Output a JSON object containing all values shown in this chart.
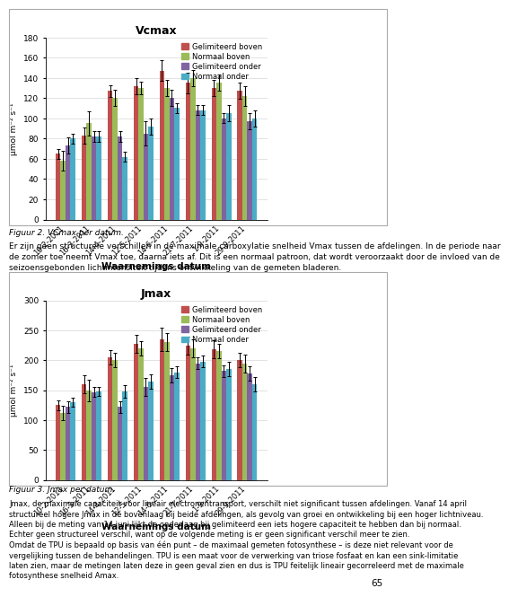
{
  "vcmax": {
    "title": "Vcmax",
    "xlabel": "Waarnemings datum",
    "ylabel": "μmol m⁻² s⁻¹",
    "ylim": [
      0,
      180
    ],
    "yticks": [
      0,
      20,
      40,
      60,
      80,
      100,
      120,
      140,
      160,
      180
    ],
    "categories": [
      "10-2-2011",
      "16-3-2011",
      "14-4-2011",
      "12-5-2011",
      "14-6-2011",
      "21-7-2011",
      "1-9-2011",
      "29-9-2011"
    ],
    "series": {
      "Gelimiteerd boven": [
        65,
        83,
        127,
        132,
        147,
        135,
        130,
        127
      ],
      "Normaal boven": [
        58,
        95,
        120,
        130,
        130,
        140,
        135,
        122
      ],
      "Gelimiteerd onder": [
        73,
        82,
        82,
        85,
        120,
        108,
        100,
        97
      ],
      "Normaal onder": [
        80,
        82,
        62,
        92,
        110,
        108,
        105,
        100
      ]
    },
    "errors": {
      "Gelimiteerd boven": [
        5,
        8,
        6,
        8,
        10,
        10,
        8,
        8
      ],
      "Normaal boven": [
        10,
        12,
        8,
        6,
        8,
        8,
        8,
        10
      ],
      "Gelimiteerd onder": [
        8,
        5,
        5,
        12,
        8,
        5,
        5,
        8
      ],
      "Normaal onder": [
        5,
        5,
        5,
        8,
        5,
        5,
        8,
        8
      ]
    }
  },
  "jmax": {
    "title": "Jmax",
    "xlabel": "Waarnemings datum",
    "ylabel": "μmol m⁻² s⁻¹",
    "ylim": [
      0,
      300
    ],
    "yticks": [
      0,
      50,
      100,
      150,
      200,
      250,
      300
    ],
    "categories": [
      "10-2-2011",
      "16-3-2011",
      "14-4-2011",
      "12-5-2011",
      "14-6-2011",
      "21-7-2011",
      "1-9-2011",
      "29-9-2011"
    ],
    "series": {
      "Gelimiteerd boven": [
        125,
        160,
        205,
        228,
        235,
        225,
        218,
        200
      ],
      "Normaal boven": [
        112,
        150,
        200,
        220,
        230,
        220,
        215,
        195
      ],
      "Gelimiteerd onder": [
        122,
        147,
        122,
        155,
        175,
        195,
        182,
        178
      ],
      "Normaal onder": [
        130,
        148,
        148,
        165,
        180,
        198,
        185,
        160
      ]
    },
    "errors": {
      "Gelimiteerd boven": [
        8,
        15,
        12,
        15,
        20,
        15,
        15,
        12
      ],
      "Normaal boven": [
        12,
        18,
        12,
        12,
        15,
        15,
        12,
        15
      ],
      "Gelimiteerd onder": [
        10,
        8,
        10,
        15,
        12,
        10,
        10,
        12
      ],
      "Normaal onder": [
        8,
        8,
        10,
        12,
        10,
        10,
        12,
        12
      ]
    }
  },
  "series_colors": {
    "Gelimiteerd boven": "#C0504D",
    "Normaal boven": "#9BBB59",
    "Gelimiteerd onder": "#8064A2",
    "Normaal onder": "#4BACC6"
  },
  "legend_order": [
    "Gelimiteerd boven",
    "Normaal boven",
    "Gelimiteerd onder",
    "Normaal onder"
  ],
  "fig_caption1": "Figuur 2. VCmax per datum.",
  "fig_caption2": "Figuur 3. Jmax per datum.",
  "body_text1_lines": [
    "Er zijn geen structurele verschillen in de maximale carboxylatie snelheid Vmax tussen de afdelingen. In de periode naar",
    "de zomer toe neemt Vmax toe, daarna iets af. Dit is een normaal patroon, dat wordt veroorzaakt door de invloed van de",
    "seizoensgebonden lichtintensiteit tijdens ontwikkeling van de gemeten bladeren."
  ],
  "body_text2_lines": [
    "Jmax, de maximale capaciteit voor lineair electronentransport, verschilt niet significant tussen afdelingen. Vanaf 14 april",
    "structureel hogere Jmax in de bovenlaag bij beide afdelingen, als gevolg van groei en ontwikkeling bij een hoger lichtniveau.",
    "Alleen bij de meting van 14 juni lijkt de onderlaag bij gelimiteerd een iets hogere capaciteit te hebben dan bij normaal.",
    "Echter geen structureel verschil, want op de volgende meting is er geen significant verschil meer te zien.",
    "Omdat de TPU is bepaald op basis van één punt – de maximaal gemeten fotosynthese – is deze niet relevant voor de",
    "vergelijking tussen de behandelingen. TPU is een maat voor de verwerking van triose fosfaat en kan een sink-limitatie",
    "laten zien, maar de metingen laten deze in geen geval zien en dus is TPU feitelijk lineair gecorreleerd met de maximale",
    "fotosynthese snelheid Amax."
  ],
  "page_number": "65",
  "background_color": "#FFFFFF"
}
